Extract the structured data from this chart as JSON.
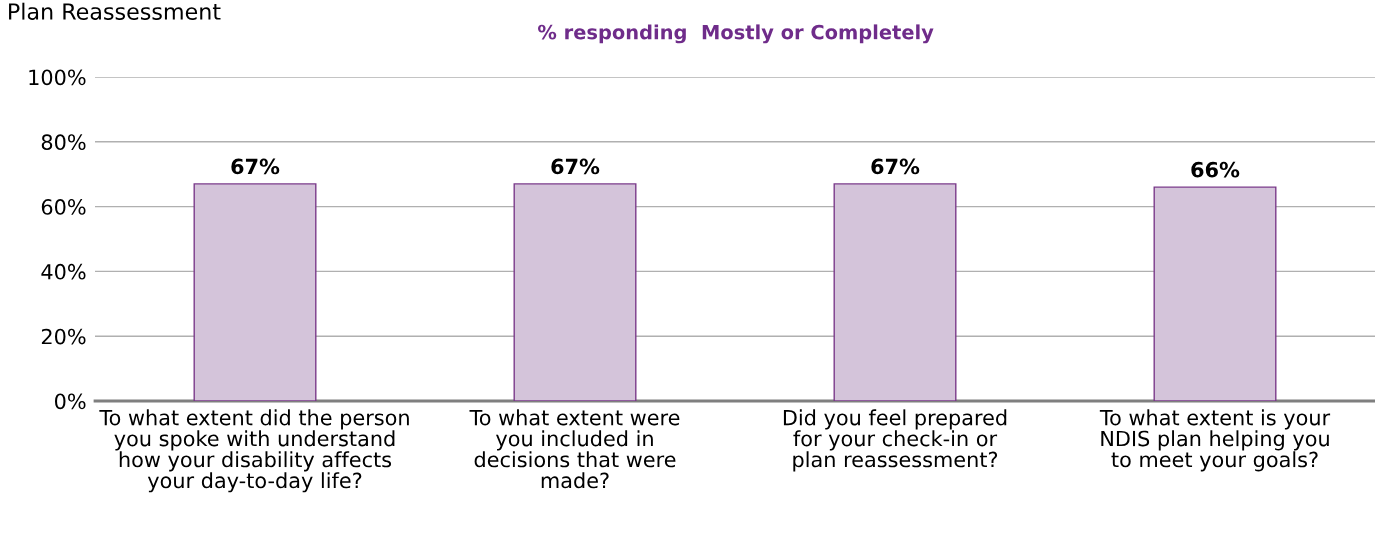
{
  "chart_data": {
    "type": "bar",
    "title": "Plan Reassessment",
    "subtitle": "% responding  Mostly or Completely",
    "categories": [
      "To what extent did the person\nyou spoke with understand\nhow your disability affects\nyour day-to-day life?",
      "To what extent were\nyou included in\ndecisions that were\nmade?",
      "Did you feel prepared\nfor your check-in or\nplan reassessment?",
      "To what extent is your\nNDIS plan helping you\nto meet your goals?"
    ],
    "values": [
      67,
      67,
      67,
      66
    ],
    "color": "#d4c4da",
    "ylim": [
      0,
      100
    ],
    "yticks": [
      {
        "value": 0,
        "label": "0%"
      },
      {
        "value": 20,
        "label": "20%"
      },
      {
        "value": 40,
        "label": "40%"
      },
      {
        "value": 60,
        "label": "60%"
      },
      {
        "value": 80,
        "label": "80%"
      },
      {
        "value": 100,
        "label": "100%"
      }
    ],
    "grid": "y",
    "value_labels": [
      "67%",
      "67%",
      "67%",
      "66%"
    ],
    "legend": false
  }
}
